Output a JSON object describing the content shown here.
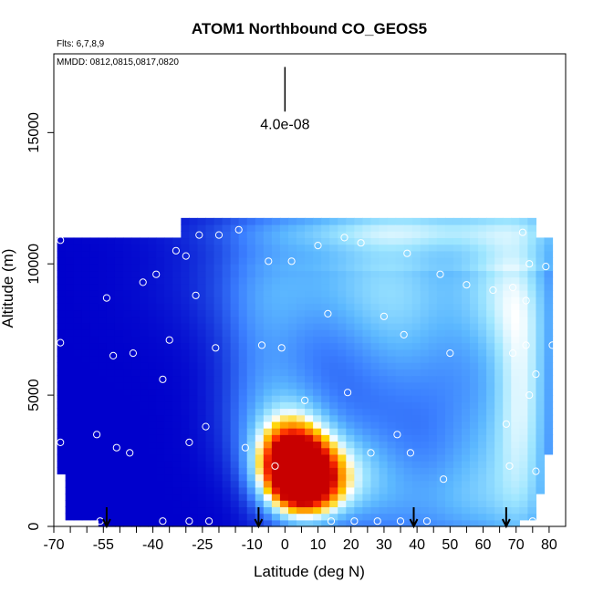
{
  "chart_data": {
    "type": "heatmap",
    "title": "ATOM1 Northbound CO_GEOS5",
    "flights_note": "Flts: 6,7,8,9",
    "dates_note": "MMDD: 0812,0815,0817,0820",
    "xlabel": "Latitude (deg N)",
    "ylabel": "Altitude (m)",
    "xlim": [
      -70,
      85
    ],
    "ylim": [
      0,
      18000
    ],
    "x_tick_labels": [
      "-70",
      "-55",
      "-40",
      "-25",
      "-10",
      "0",
      "10",
      "20",
      "30",
      "40",
      "50",
      "60",
      "70",
      "80"
    ],
    "x_tick_values": [
      -70,
      -55,
      -40,
      -25,
      -10,
      0,
      10,
      20,
      30,
      40,
      50,
      60,
      70,
      80
    ],
    "x_minor_ticks": [
      -65,
      -60,
      -50,
      -45,
      -35,
      -30,
      -20,
      -15,
      -5,
      5,
      15,
      25,
      35,
      45,
      55,
      65,
      75
    ],
    "y_tick_labels": [
      "0",
      "5000",
      "10000",
      "15000"
    ],
    "y_tick_values": [
      0,
      5000,
      10000,
      15000
    ],
    "scale_bar_label": "4.0e-08",
    "scale_bar": {
      "x": 0,
      "y_low": 15800,
      "y_high": 17500
    },
    "color_ramp": [
      "#00009a",
      "#0000cc",
      "#1a3fe0",
      "#3b7fff",
      "#5cb8ff",
      "#9fe6ff",
      "#ffffff",
      "#ffd400",
      "#ff8c00",
      "#ff3000",
      "#c80000"
    ],
    "field_extent": {
      "base": {
        "lat_min": -69,
        "lat_max": 80,
        "alt_max": 11000
      },
      "cap": {
        "lat_min": -32,
        "lat_max": 75,
        "alt_max": 11700
      },
      "low_limit": {
        "alt": 250,
        "lat_min": -56,
        "lat_max": 72
      }
    },
    "hotspots": [
      {
        "lat": 2,
        "alt": 2300,
        "val": 9.6,
        "sx": 7,
        "sy": 1100
      },
      {
        "lat": 8,
        "alt": 1700,
        "val": 6.0,
        "sx": 7,
        "sy": 900
      },
      {
        "lat": 0,
        "alt": 3800,
        "val": 2.2,
        "sx": 12,
        "sy": 1600
      },
      {
        "lat": 18,
        "alt": 2200,
        "val": 1.5,
        "sx": 10,
        "sy": 1200
      },
      {
        "lat": 10,
        "alt": 9500,
        "val": 2.0,
        "sx": 25,
        "sy": 1800
      },
      {
        "lat": -6,
        "alt": 7000,
        "val": 1.4,
        "sx": 10,
        "sy": 2500
      },
      {
        "lat": 35,
        "alt": 8000,
        "val": 2.0,
        "sx": 14,
        "sy": 2800
      },
      {
        "lat": 65,
        "alt": 9000,
        "val": 2.4,
        "sx": 10,
        "sy": 2000
      },
      {
        "lat": 72,
        "alt": 5000,
        "val": 2.8,
        "sx": 6,
        "sy": 3500
      },
      {
        "lat": 60,
        "alt": 3000,
        "val": 1.6,
        "sx": 10,
        "sy": 2000
      },
      {
        "lat": 25,
        "alt": 1500,
        "val": 1.4,
        "sx": 14,
        "sy": 1500
      },
      {
        "lat": 55,
        "alt": 800,
        "val": 1.3,
        "sx": 18,
        "sy": 1200
      },
      {
        "lat": 35,
        "alt": 11300,
        "val": 1.8,
        "sx": 35,
        "sy": 500
      }
    ],
    "sample_points": [
      {
        "lat": -68,
        "alt": 10900
      },
      {
        "lat": -68,
        "alt": 7000
      },
      {
        "lat": -68,
        "alt": 3200
      },
      {
        "lat": -57,
        "alt": 3500
      },
      {
        "lat": -56,
        "alt": 200
      },
      {
        "lat": -54,
        "alt": 8700
      },
      {
        "lat": -52,
        "alt": 6500
      },
      {
        "lat": -51,
        "alt": 3000
      },
      {
        "lat": -47,
        "alt": 2800
      },
      {
        "lat": -46,
        "alt": 6600
      },
      {
        "lat": -43,
        "alt": 9300
      },
      {
        "lat": -39,
        "alt": 9600
      },
      {
        "lat": -37,
        "alt": 5600
      },
      {
        "lat": -37,
        "alt": 200
      },
      {
        "lat": -35,
        "alt": 7100
      },
      {
        "lat": -33,
        "alt": 10500
      },
      {
        "lat": -30,
        "alt": 10300
      },
      {
        "lat": -29,
        "alt": 3200
      },
      {
        "lat": -29,
        "alt": 200
      },
      {
        "lat": -27,
        "alt": 8800
      },
      {
        "lat": -26,
        "alt": 11100
      },
      {
        "lat": -24,
        "alt": 3800
      },
      {
        "lat": -23,
        "alt": 200
      },
      {
        "lat": -21,
        "alt": 6800
      },
      {
        "lat": -20,
        "alt": 11100
      },
      {
        "lat": -14,
        "alt": 11300
      },
      {
        "lat": -12,
        "alt": 3000
      },
      {
        "lat": -7,
        "alt": 6900
      },
      {
        "lat": -5,
        "alt": 10100
      },
      {
        "lat": -3,
        "alt": 2300
      },
      {
        "lat": -1,
        "alt": 6800
      },
      {
        "lat": 2,
        "alt": 10100
      },
      {
        "lat": 6,
        "alt": 4800
      },
      {
        "lat": 10,
        "alt": 10700
      },
      {
        "lat": 13,
        "alt": 8100
      },
      {
        "lat": 14,
        "alt": 200
      },
      {
        "lat": 18,
        "alt": 11000
      },
      {
        "lat": 19,
        "alt": 5100
      },
      {
        "lat": 21,
        "alt": 200
      },
      {
        "lat": 23,
        "alt": 10800
      },
      {
        "lat": 26,
        "alt": 2800
      },
      {
        "lat": 28,
        "alt": 200
      },
      {
        "lat": 30,
        "alt": 8000
      },
      {
        "lat": 34,
        "alt": 3500
      },
      {
        "lat": 35,
        "alt": 200
      },
      {
        "lat": 36,
        "alt": 7300
      },
      {
        "lat": 37,
        "alt": 10400
      },
      {
        "lat": 38,
        "alt": 2800
      },
      {
        "lat": 43,
        "alt": 200
      },
      {
        "lat": 47,
        "alt": 9600
      },
      {
        "lat": 48,
        "alt": 1800
      },
      {
        "lat": 50,
        "alt": 6600
      },
      {
        "lat": 55,
        "alt": 9200
      },
      {
        "lat": 63,
        "alt": 9000
      },
      {
        "lat": 67,
        "alt": 3900
      },
      {
        "lat": 68,
        "alt": 2300
      },
      {
        "lat": 69,
        "alt": 6600
      },
      {
        "lat": 69,
        "alt": 9100
      },
      {
        "lat": 72,
        "alt": 11200
      },
      {
        "lat": 73,
        "alt": 6900
      },
      {
        "lat": 73,
        "alt": 8600
      },
      {
        "lat": 74,
        "alt": 5000
      },
      {
        "lat": 74,
        "alt": 10000
      },
      {
        "lat": 75,
        "alt": 200
      },
      {
        "lat": 76,
        "alt": 5800
      },
      {
        "lat": 76,
        "alt": 2100
      },
      {
        "lat": 79,
        "alt": 9900
      },
      {
        "lat": 81,
        "alt": 6900
      }
    ],
    "arrow_latitudes": [
      -54,
      -8,
      39,
      67
    ],
    "grid": false,
    "legend": "none"
  }
}
